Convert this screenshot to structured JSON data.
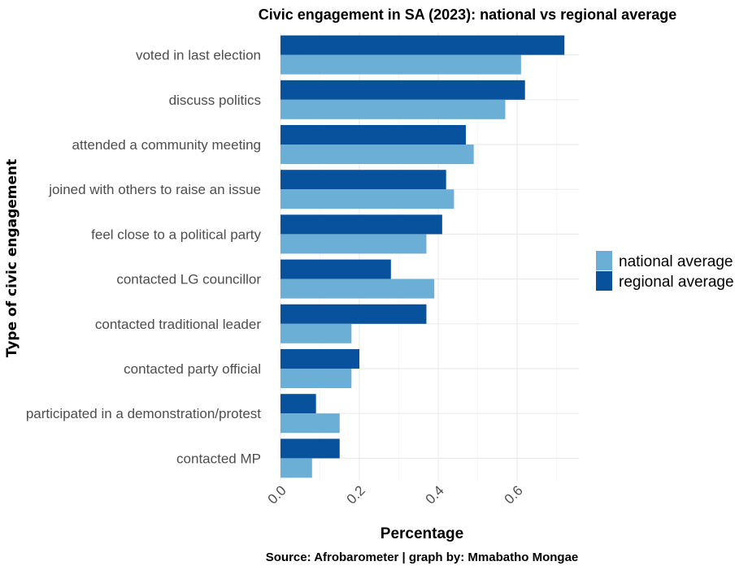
{
  "chart_data": {
    "type": "bar",
    "orientation": "horizontal",
    "title": "Civic engagement in SA (2023): national vs regional average",
    "xlabel": "Percentage",
    "ylabel": "Type of civic engagement",
    "caption": "Source: Afrobarometer | graph by: Mmabatho Mongae",
    "xlim": [
      0,
      0.75
    ],
    "x_ticks": [
      "0.0",
      "0.2",
      "0.4",
      "0.6"
    ],
    "x_tick_values": [
      0,
      0.2,
      0.4,
      0.6
    ],
    "grid": true,
    "legend_position": "right",
    "categories": [
      "voted in last election",
      "discuss politics",
      "attended a community meeting",
      "joined with others to raise an issue",
      "feel close to a political party",
      "contacted LG councillor",
      "contacted traditional leader",
      "contacted party official",
      "participated in a demonstration/protest",
      "contacted MP"
    ],
    "series": [
      {
        "name": "national average",
        "color": "#6baed6",
        "values": [
          0.61,
          0.57,
          0.49,
          0.44,
          0.37,
          0.39,
          0.18,
          0.18,
          0.15,
          0.08
        ]
      },
      {
        "name": "regional average",
        "color": "#08519c",
        "values": [
          0.72,
          0.62,
          0.47,
          0.42,
          0.41,
          0.28,
          0.37,
          0.2,
          0.09,
          0.15
        ]
      }
    ]
  }
}
